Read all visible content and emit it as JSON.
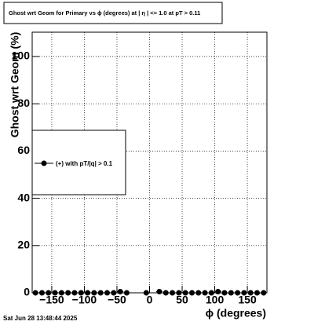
{
  "chart_data": {
    "type": "scatter",
    "title": "Ghost wrt Geom for Primary vs ϕ (degrees) at |  η  | <= 1.0 at pT > 0.11",
    "x_label": "ϕ (degrees)",
    "y_label": "Ghost wrt Geom (%)",
    "x": [
      -175,
      -165,
      -155,
      -145,
      -135,
      -125,
      -115,
      -105,
      -95,
      -85,
      -75,
      -65,
      -55,
      -45,
      -35,
      -25,
      -15,
      -5,
      5,
      15,
      25,
      35,
      45,
      55,
      65,
      75,
      85,
      95,
      105,
      115,
      125,
      135,
      145,
      155,
      165,
      175
    ],
    "series": [
      {
        "name": "(+) with pT/|q| > 0.1",
        "color": "#000000",
        "values": [
          0,
          0,
          0,
          0,
          0,
          0,
          0,
          0,
          0,
          0,
          0,
          0,
          0,
          0.5,
          0,
          null,
          null,
          0,
          null,
          0.5,
          0,
          0,
          0,
          0,
          0,
          0,
          0,
          0,
          0.5,
          0,
          0,
          0,
          0,
          0,
          0,
          0
        ]
      }
    ],
    "xlim": [
      -180,
      180
    ],
    "ylim": [
      0,
      110.3
    ],
    "xticks": [
      {
        "value": -150,
        "label": "−150"
      },
      {
        "value": -100,
        "label": "−100"
      },
      {
        "value": -50,
        "label": "−50"
      },
      0,
      50,
      100,
      150
    ],
    "yticks": [
      0,
      20,
      40,
      60,
      80,
      100
    ],
    "grid": true,
    "legend": "left",
    "timestamp": "Sat Jun 28 13:48:44 2025"
  }
}
